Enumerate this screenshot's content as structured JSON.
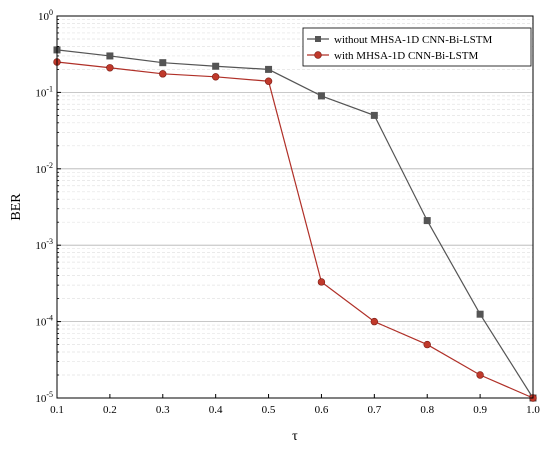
{
  "chart_data": {
    "type": "line",
    "xlabel": "τ",
    "ylabel": "BER",
    "xlim": [
      0.1,
      1.0
    ],
    "ylim_exponents": [
      -5,
      0
    ],
    "y_scale": "log",
    "x_ticks": [
      "0.1",
      "0.2",
      "0.3",
      "0.4",
      "0.5",
      "0.6",
      "0.7",
      "0.8",
      "0.9",
      "1.0"
    ],
    "y_ticks": [
      {
        "base": "10",
        "exp": "0"
      },
      {
        "base": "10",
        "exp": "-1"
      },
      {
        "base": "10",
        "exp": "-2"
      },
      {
        "base": "10",
        "exp": "-3"
      },
      {
        "base": "10",
        "exp": "-4"
      },
      {
        "base": "10",
        "exp": "-5"
      }
    ],
    "grid": true,
    "legend_position": "top-right",
    "x": [
      0.1,
      0.2,
      0.3,
      0.4,
      0.5,
      0.6,
      0.7,
      0.8,
      0.9,
      1.0
    ],
    "series": [
      {
        "name": "without MHSA-1D CNN-Bi-LSTM",
        "color": "#555555",
        "marker": "square",
        "values": [
          0.36,
          0.3,
          0.245,
          0.22,
          0.2,
          0.09,
          0.05,
          0.0021,
          0.000125,
          1e-05
        ]
      },
      {
        "name": "with MHSA-1D CNN-Bi-LSTM",
        "color": "#c0392b",
        "line_color": "#b03028",
        "marker": "circle",
        "values": [
          0.25,
          0.21,
          0.175,
          0.16,
          0.14,
          0.00033,
          0.0001,
          5e-05,
          2e-05,
          1e-05
        ]
      }
    ]
  }
}
